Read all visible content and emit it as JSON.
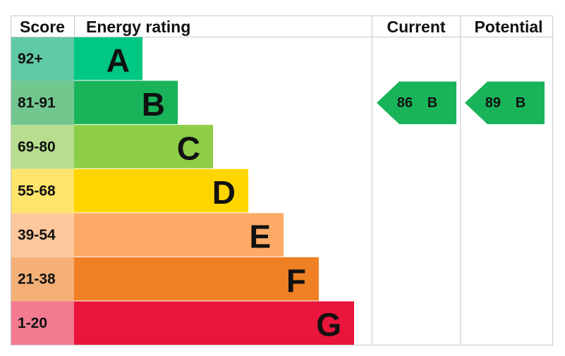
{
  "header": {
    "score": "Score",
    "rating": "Energy rating",
    "current": "Current",
    "potential": "Potential"
  },
  "bands": [
    {
      "range": "92+",
      "letter": "A",
      "color": "#00c781",
      "light": "#5fcaa3"
    },
    {
      "range": "81-91",
      "letter": "B",
      "color": "#19b459",
      "light": "#72c78f"
    },
    {
      "range": "69-80",
      "letter": "C",
      "color": "#8dce46",
      "light": "#b7de8f"
    },
    {
      "range": "55-68",
      "letter": "D",
      "color": "#ffd500",
      "light": "#ffe46b"
    },
    {
      "range": "39-54",
      "letter": "E",
      "color": "#fcaa65",
      "light": "#fdc89c"
    },
    {
      "range": "21-38",
      "letter": "F",
      "color": "#ef8023",
      "light": "#f4b077"
    },
    {
      "range": "1-20",
      "letter": "G",
      "color": "#e9153b",
      "light": "#f27b8f"
    }
  ],
  "current": {
    "score": 86,
    "letter": "B"
  },
  "potential": {
    "score": 89,
    "letter": "B"
  }
}
